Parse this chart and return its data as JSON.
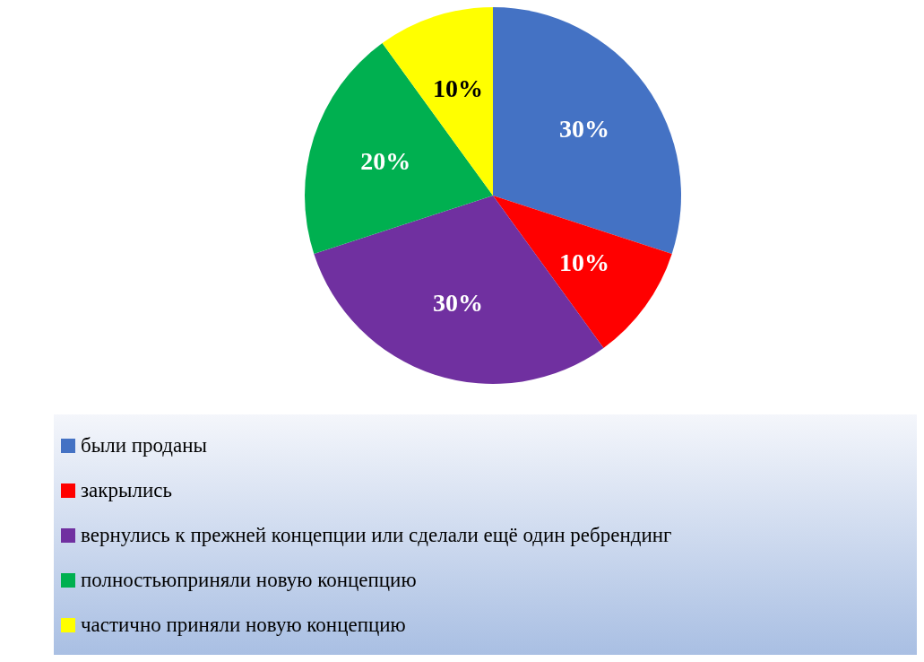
{
  "chart_data": {
    "type": "pie",
    "categories": [
      "были проданы",
      "закрылись",
      "вернулись к прежней концепции или сделали ещё один ребрендинг",
      "полностьюприняли новую концепцию",
      "частично приняли новую концепцию"
    ],
    "values": [
      30,
      10,
      30,
      20,
      10
    ],
    "colors": [
      "#4472c4",
      "#ff0000",
      "#7030a0",
      "#00b050",
      "#ffff00"
    ],
    "value_labels": [
      "30%",
      "10%",
      "30%",
      "20%",
      "10%"
    ],
    "legend": "bottom"
  }
}
